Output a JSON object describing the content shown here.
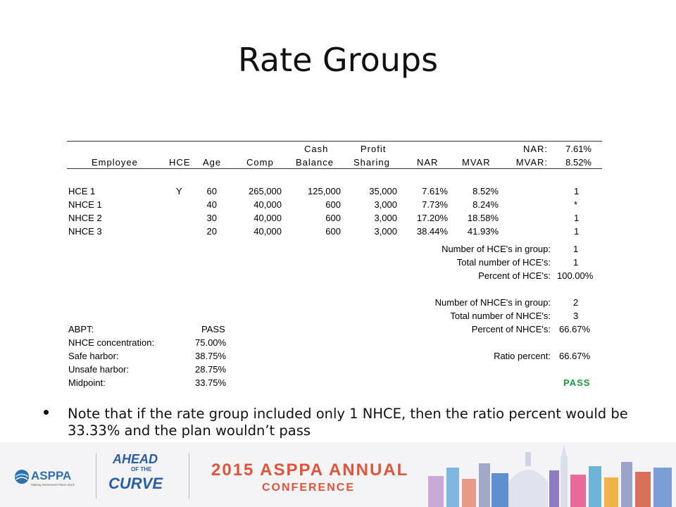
{
  "title": "Rate Groups",
  "table": {
    "header_row1": {
      "cash": "Cash",
      "profit": "Profit",
      "nar_label": "NAR:",
      "nar_value": "7.61%"
    },
    "header_row2": {
      "employee": "Employee",
      "hce": "HCE",
      "age": "Age",
      "comp": "Comp",
      "balance": "Balance",
      "sharing": "Sharing",
      "nar": "NAR",
      "mvar": "MVAR",
      "mvar_label": "MVAR:",
      "mvar_value": "8.52%"
    },
    "rows": [
      {
        "employee": "HCE 1",
        "hce": "Y",
        "age": "60",
        "comp": "265,000",
        "balance": "125,000",
        "sharing": "35,000",
        "nar": "7.61%",
        "mvar": "8.52%",
        "flag": "1"
      },
      {
        "employee": "NHCE 1",
        "hce": "",
        "age": "40",
        "comp": "40,000",
        "balance": "600",
        "sharing": "3,000",
        "nar": "7.73%",
        "mvar": "8.24%",
        "flag": "*"
      },
      {
        "employee": "NHCE 2",
        "hce": "",
        "age": "30",
        "comp": "40,000",
        "balance": "600",
        "sharing": "3,000",
        "nar": "17.20%",
        "mvar": "18.58%",
        "flag": "1"
      },
      {
        "employee": "NHCE 3",
        "hce": "",
        "age": "20",
        "comp": "40,000",
        "balance": "600",
        "sharing": "3,000",
        "nar": "38.44%",
        "mvar": "41.93%",
        "flag": "1"
      }
    ],
    "summary": [
      {
        "label": "Number of HCE's in group:",
        "value": "1"
      },
      {
        "label": "Total number of HCE's:",
        "value": "1"
      },
      {
        "label": "Percent of HCE's:",
        "value": "100.00%"
      },
      {
        "label": "Number of NHCE's in group:",
        "value": "2"
      },
      {
        "label": "Total number of NHCE's:",
        "value": "3"
      },
      {
        "label": "Percent of NHCE's:",
        "value": "66.67%"
      },
      {
        "label": "Ratio percent:",
        "value": "66.67%"
      }
    ],
    "abpt": [
      {
        "label": "ABPT:",
        "value": "PASS"
      },
      {
        "label": "NHCE concentration:",
        "value": "75.00%"
      },
      {
        "label": "Safe harbor:",
        "value": "38.75%"
      },
      {
        "label": "Unsafe harbor:",
        "value": "28.75%"
      },
      {
        "label": "Midpoint:",
        "value": "33.75%"
      }
    ],
    "result": "PASS"
  },
  "bullet": "Note that if the rate group included only 1 NHCE, then the ratio percent would be 33.33% and the plan wouldn’t pass",
  "footer": {
    "asppa_name": "ASPPA",
    "asppa_tagline": "Making Retirement Plans Work",
    "ahead_line1": "AHEAD",
    "ahead_line2": "OF THE",
    "ahead_line3": "CURVE",
    "conference_line1": "2015 ASPPA ANNUAL",
    "conference_line2": "CONFERENCE"
  },
  "colors": {
    "pass_green": "#1a9a3a",
    "conference_orange": "#e2543a",
    "logo_blue": "#2a5da8"
  }
}
